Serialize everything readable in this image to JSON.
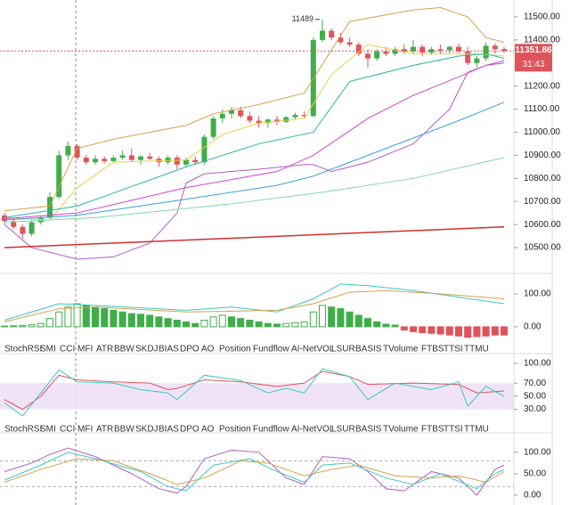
{
  "chart_data": [
    {
      "type": "candlestick",
      "up_color": "#3fae49",
      "down_color": "#e0535a",
      "open": [
        10640,
        10615,
        10590,
        10560,
        10610,
        10630,
        10720,
        10900,
        10940,
        10890,
        10870,
        10885,
        10875,
        10890,
        10900,
        10880,
        10895,
        10885,
        10870,
        10890,
        10860,
        10880,
        10870,
        10980,
        11060,
        11080,
        11095,
        11070,
        11050,
        11040,
        11055,
        11045,
        11065,
        11075,
        11070,
        11400,
        11440,
        11410,
        11390,
        11380,
        11340,
        11320,
        11350,
        11340,
        11360,
        11350,
        11370,
        11345,
        11360,
        11355,
        11370,
        11350,
        11300,
        11320,
        11375,
        11360
      ],
      "high": [
        10650,
        10625,
        10600,
        10620,
        10640,
        10740,
        10920,
        10960,
        10950,
        10900,
        10900,
        10895,
        10900,
        10920,
        10930,
        10900,
        10910,
        10895,
        10900,
        10900,
        10890,
        10895,
        10990,
        11070,
        11100,
        11110,
        11110,
        11090,
        11070,
        11060,
        11070,
        11070,
        11085,
        11090,
        11410,
        11489,
        11450,
        11430,
        11410,
        11390,
        11360,
        11360,
        11370,
        11370,
        11380,
        11400,
        11380,
        11370,
        11380,
        11375,
        11385,
        11370,
        11330,
        11390,
        11385,
        11370
      ],
      "low": [
        10600,
        10580,
        10540,
        10550,
        10600,
        10625,
        10710,
        10880,
        10880,
        10860,
        10860,
        10865,
        10870,
        10880,
        10870,
        10860,
        10880,
        10850,
        10860,
        10840,
        10850,
        10860,
        10860,
        10970,
        11040,
        11060,
        11060,
        11040,
        11020,
        11020,
        11030,
        11040,
        11055,
        11060,
        11065,
        11390,
        11400,
        11380,
        11370,
        11330,
        11280,
        11310,
        11330,
        11330,
        11340,
        11340,
        11330,
        11335,
        11340,
        11340,
        11345,
        11290,
        11280,
        11310,
        11340,
        11345
      ],
      "close": [
        10615,
        10590,
        10560,
        10610,
        10630,
        10720,
        10900,
        10940,
        10890,
        10870,
        10885,
        10875,
        10890,
        10900,
        10880,
        10895,
        10885,
        10870,
        10890,
        10860,
        10880,
        10870,
        10980,
        11060,
        11080,
        11095,
        11070,
        11050,
        11040,
        11055,
        11045,
        11065,
        11075,
        11070,
        11400,
        11440,
        11410,
        11390,
        11380,
        11340,
        11320,
        11350,
        11340,
        11360,
        11350,
        11370,
        11345,
        11360,
        11355,
        11370,
        11350,
        11300,
        11320,
        11375,
        11360,
        11352
      ],
      "lines": [
        {
          "color": "#d4a24c",
          "x": [
            0,
            5,
            8,
            12,
            20,
            23,
            28,
            33,
            38,
            45,
            48,
            51,
            53,
            55
          ],
          "values": [
            10660,
            10680,
            10930,
            10970,
            11030,
            11080,
            11120,
            11170,
            11480,
            11530,
            11540,
            11500,
            11410,
            11390
          ]
        },
        {
          "color": "#b05cc8",
          "x": [
            0,
            3,
            8,
            12,
            16,
            19,
            20,
            22,
            28,
            33,
            34,
            36,
            40,
            45,
            49,
            51,
            53,
            55
          ],
          "values": [
            10600,
            10500,
            10450,
            10460,
            10520,
            10650,
            10780,
            10820,
            10840,
            10860,
            10860,
            10830,
            10870,
            10950,
            11100,
            11260,
            11290,
            11300
          ]
        },
        {
          "color": "#e8d24a",
          "x": [
            0,
            5,
            8,
            12,
            20,
            24,
            28,
            33,
            36,
            40,
            45,
            52,
            55
          ],
          "values": [
            10630,
            10620,
            10760,
            10870,
            10880,
            10990,
            11040,
            11060,
            11250,
            11380,
            11340,
            11340,
            11330
          ]
        },
        {
          "color": "#2bb5a0",
          "x": [
            0,
            8,
            20,
            28,
            34,
            38,
            45,
            50,
            53,
            55
          ],
          "values": [
            10630,
            10680,
            10850,
            10950,
            11000,
            11220,
            11290,
            11330,
            11340,
            11320
          ]
        },
        {
          "color": "#cc44cc",
          "x": [
            0,
            8,
            20,
            30,
            34,
            40,
            45,
            50,
            53,
            55
          ],
          "values": [
            10625,
            10650,
            10760,
            10830,
            10900,
            11060,
            11160,
            11240,
            11290,
            11310
          ]
        },
        {
          "color": "#3aa0d8",
          "x": [
            0,
            8,
            20,
            30,
            34,
            40,
            50,
            55
          ],
          "values": [
            10620,
            10640,
            10710,
            10770,
            10810,
            10900,
            11050,
            11130
          ]
        },
        {
          "color": "#7fd8a8",
          "x": [
            0,
            10,
            25,
            35,
            45,
            55
          ],
          "values": [
            10610,
            10630,
            10690,
            10740,
            10800,
            10890
          ]
        },
        {
          "color": "#d03030",
          "x": [
            0,
            55
          ],
          "values": [
            10500,
            10590
          ]
        }
      ],
      "high_label": 11489,
      "last_price": 11351.86,
      "countdown": "31:43",
      "ylim": [
        10396,
        11573
      ],
      "yticks": [
        {
          "value": 11500,
          "label": "11500.00"
        },
        {
          "value": 11400,
          "label": "11400.00"
        },
        {
          "value": 11200,
          "label": "11200.00"
        },
        {
          "value": 11100,
          "label": "11100.00"
        },
        {
          "value": 11000,
          "label": "11000.00"
        },
        {
          "value": 10900,
          "label": "10900.00"
        },
        {
          "value": 10800,
          "label": "10800.00"
        },
        {
          "value": 10700,
          "label": "10700.00"
        },
        {
          "value": 10600,
          "label": "10600.00"
        },
        {
          "value": 10500,
          "label": "10500.00"
        }
      ]
    },
    {
      "type": "bar",
      "up_color": "#3fae49",
      "down_color": "#e0535a",
      "values": [
        2,
        3,
        4,
        6,
        10,
        25,
        45,
        60,
        70,
        65,
        60,
        55,
        50,
        45,
        40,
        38,
        35,
        30,
        25,
        20,
        15,
        10,
        20,
        30,
        35,
        30,
        25,
        20,
        15,
        10,
        8,
        10,
        12,
        15,
        45,
        65,
        60,
        55,
        45,
        35,
        25,
        15,
        8,
        5,
        -10,
        -15,
        -18,
        -20,
        -22,
        -25,
        -28,
        -32,
        -30,
        -28,
        -25,
        -25
      ],
      "lines": [
        {
          "color": "#3cc8c0",
          "x": [
            0,
            6,
            10,
            20,
            25,
            30,
            34,
            37,
            40,
            45,
            50,
            55
          ],
          "values": [
            20,
            70,
            65,
            50,
            60,
            45,
            85,
            130,
            125,
            110,
            90,
            70
          ]
        },
        {
          "color": "#d4a24c",
          "x": [
            0,
            6,
            10,
            20,
            30,
            34,
            38,
            42,
            48,
            55
          ],
          "values": [
            15,
            55,
            60,
            45,
            50,
            70,
            105,
            110,
            100,
            85
          ]
        }
      ],
      "ylim": [
        -49,
        154
      ],
      "yticks": [
        {
          "value": 100,
          "label": "100.00"
        },
        {
          "value": 0,
          "label": "0.00"
        }
      ]
    },
    {
      "type": "line",
      "band": [
        30,
        70
      ],
      "lines": [
        {
          "color": "#e0535a",
          "x": [
            0,
            2,
            4,
            6,
            8,
            12,
            16,
            18,
            19,
            22,
            26,
            30,
            33,
            35,
            38,
            40,
            45,
            50,
            52,
            55
          ],
          "values": [
            45,
            30,
            50,
            82,
            75,
            72,
            70,
            60,
            62,
            75,
            72,
            65,
            70,
            88,
            80,
            68,
            70,
            68,
            55,
            58
          ]
        },
        {
          "color": "#3cc8c0",
          "x": [
            0,
            2,
            4,
            6,
            8,
            12,
            15,
            18,
            19,
            22,
            26,
            29,
            31,
            33,
            35,
            38,
            40,
            43,
            47,
            50,
            51,
            53,
            55
          ],
          "values": [
            40,
            20,
            55,
            90,
            72,
            70,
            60,
            55,
            45,
            82,
            74,
            55,
            62,
            55,
            92,
            80,
            45,
            70,
            60,
            72,
            35,
            65,
            50
          ]
        }
      ],
      "ylim": [
        5,
        111
      ],
      "yticks": [
        {
          "value": 100,
          "label": "100.00"
        },
        {
          "value": 70,
          "label": "70.00"
        },
        {
          "value": 50,
          "label": "50.00"
        },
        {
          "value": 30,
          "label": "30.00"
        }
      ]
    },
    {
      "type": "line",
      "levels": [
        80,
        20
      ],
      "lines": [
        {
          "color": "#b05cc8",
          "x": [
            0,
            3,
            5,
            7,
            10,
            14,
            17,
            19,
            20,
            22,
            25,
            28,
            31,
            33,
            35,
            38,
            40,
            42,
            44,
            47,
            50,
            52,
            54,
            55
          ],
          "values": [
            55,
            75,
            95,
            110,
            90,
            50,
            15,
            5,
            20,
            85,
            105,
            100,
            40,
            25,
            90,
            85,
            55,
            15,
            10,
            55,
            40,
            0,
            60,
            70
          ]
        },
        {
          "color": "#3cc8c0",
          "x": [
            0,
            4,
            7,
            10,
            15,
            18,
            20,
            23,
            27,
            30,
            33,
            35,
            38,
            42,
            45,
            48,
            52,
            54,
            55
          ],
          "values": [
            35,
            70,
            100,
            85,
            55,
            20,
            10,
            70,
            85,
            55,
            30,
            70,
            75,
            40,
            25,
            50,
            15,
            50,
            60
          ]
        },
        {
          "color": "#d4a24c",
          "x": [
            0,
            4,
            8,
            12,
            16,
            19,
            22,
            26,
            29,
            33,
            36,
            39,
            43,
            47,
            50,
            53,
            55
          ],
          "values": [
            30,
            60,
            85,
            80,
            50,
            25,
            40,
            80,
            75,
            45,
            60,
            70,
            45,
            40,
            45,
            30,
            55
          ]
        }
      ],
      "ylim": [
        -23,
        137
      ],
      "yticks": [
        {
          "value": 100,
          "label": "100.00"
        },
        {
          "value": 50,
          "label": "50.00"
        },
        {
          "value": 0,
          "label": "0.00"
        }
      ]
    }
  ],
  "indicator_rows": [
    [
      "StochRSI",
      "SMI",
      "CCI",
      "MFI",
      "ATR",
      "BBW",
      "SKDJ",
      "BIAS",
      "DPO",
      "AO",
      "Position",
      "Fundflow",
      "AI-NetVOL",
      "LSUR",
      "BASIS",
      "TVolume",
      "FTBS",
      "TTSI",
      "TTMU"
    ],
    [
      "StochRSI",
      "SMI",
      "CCI",
      "MFI",
      "ATR",
      "BBW",
      "SKDJ",
      "BIAS",
      "DPO",
      "AO",
      "Position",
      "Fundflow",
      "AI-NetVOL",
      "LSUR",
      "BASIS",
      "TVolume",
      "FTBS",
      "TTSI",
      "TTMU"
    ]
  ]
}
